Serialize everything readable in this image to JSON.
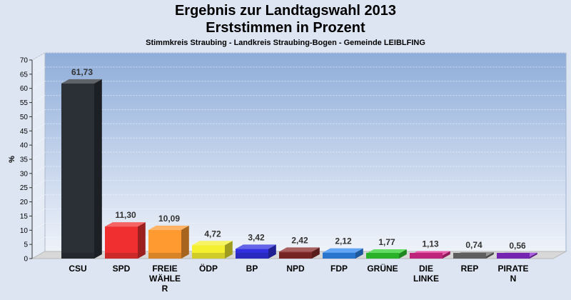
{
  "title": "Ergebnis zur Landtagswahl 2013",
  "title2": "Erststimmen in Prozent",
  "subtitle": "Stimmkreis Straubing - Landkreis Straubing-Bogen - Gemeinde LEIBLFING",
  "chart_data": {
    "type": "bar",
    "ylabel": "%",
    "ylim": [
      0,
      70
    ],
    "ytick_step": 5,
    "grid": true,
    "categories": [
      "CSU",
      "SPD",
      "FREIE WÄHLER",
      "ÖDP",
      "BP",
      "NPD",
      "FDP",
      "GRÜNE",
      "DIE LINKE",
      "REP",
      "PIRATEN"
    ],
    "category_label_lines": [
      [
        "CSU"
      ],
      [
        "SPD"
      ],
      [
        "FREIE",
        "WÄHLE",
        "R"
      ],
      [
        "ÖDP"
      ],
      [
        "BP"
      ],
      [
        "NPD"
      ],
      [
        "FDP"
      ],
      [
        "GRÜNE"
      ],
      [
        "DIE",
        "LINKE"
      ],
      [
        "REP"
      ],
      [
        "PIRATE",
        "N"
      ]
    ],
    "values": [
      61.73,
      11.3,
      10.09,
      4.72,
      3.42,
      2.42,
      2.12,
      1.77,
      1.13,
      0.74,
      0.56
    ],
    "value_labels": [
      "61,73",
      "11,30",
      "10,09",
      "4,72",
      "3,42",
      "2,42",
      "2,12",
      "1,77",
      "1,13",
      "0,74",
      "0,56"
    ],
    "colors": [
      "#2b2f36",
      "#f03030",
      "#ff9a30",
      "#f4f030",
      "#3030e0",
      "#8a2a2a",
      "#3088f0",
      "#30d030",
      "#e02a90",
      "#707070",
      "#8a2ad0"
    ]
  }
}
